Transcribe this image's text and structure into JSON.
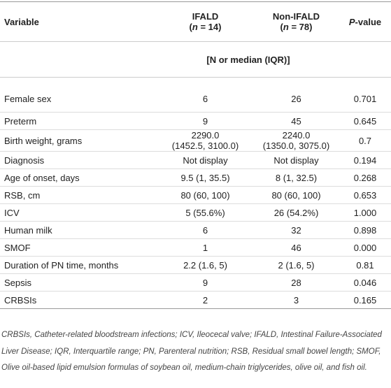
{
  "table": {
    "header": [
      [
        [
          "Variable"
        ]
      ],
      [
        [
          "IFALD"
        ],
        [
          "(",
          "n",
          " = 14)"
        ]
      ],
      [
        [
          "Non-IFALD"
        ],
        [
          "(",
          "n",
          " = 78)"
        ]
      ],
      [
        [
          "P",
          "-value"
        ]
      ]
    ],
    "subheader": "[N or median (IQR)]",
    "rows": [
      [
        "Female sex",
        [
          "6"
        ],
        [
          "26"
        ],
        [
          "0.701"
        ]
      ],
      [
        "Preterm",
        [
          "9"
        ],
        [
          "45"
        ],
        [
          "0.645"
        ]
      ],
      [
        "Birth weight, grams",
        [
          "2290.0",
          "(1452.5, 3100.0)"
        ],
        [
          "2240.0",
          "(1350.0, 3075.0)"
        ],
        [
          "0.7"
        ]
      ],
      [
        "Diagnosis",
        [
          "Not display"
        ],
        [
          "Not display"
        ],
        [
          "0.194"
        ]
      ],
      [
        "Age of onset, days",
        [
          "9.5 (1, 35.5)"
        ],
        [
          "8 (1, 32.5)"
        ],
        [
          "0.268"
        ]
      ],
      [
        "RSB, cm",
        [
          "80 (60, 100)"
        ],
        [
          "80 (60, 100)"
        ],
        [
          "0.653"
        ]
      ],
      [
        "ICV",
        [
          "5 (55.6%)"
        ],
        [
          "26 (54.2%)"
        ],
        [
          "1.000"
        ]
      ],
      [
        "Human milk",
        [
          "6"
        ],
        [
          "32"
        ],
        [
          "0.898"
        ]
      ],
      [
        "SMOF",
        [
          "1"
        ],
        [
          "46"
        ],
        [
          "0.000"
        ]
      ],
      [
        "Duration of PN time, months",
        [
          "2.2 (1.6, 5)"
        ],
        [
          "2 (1.6, 5)"
        ],
        [
          "0.81"
        ]
      ],
      [
        "Sepsis",
        [
          "9"
        ],
        [
          "28"
        ],
        [
          "0.046"
        ]
      ],
      [
        "CRBSIs",
        [
          "2"
        ],
        [
          "3"
        ],
        [
          "0.165"
        ]
      ]
    ]
  },
  "footnote": "CRBSIs, Catheter-related bloodstream infections; ICV, Ileocecal valve; IFALD, Intestinal Failure-Associated Liver Disease; IQR, Interquartile range; PN, Parenteral nutrition; RSB, Residual small bowel length; SMOF, Olive oil-based lipid emulsion formulas of soybean oil, medium-chain triglycerides, olive oil, and fish oil."
}
